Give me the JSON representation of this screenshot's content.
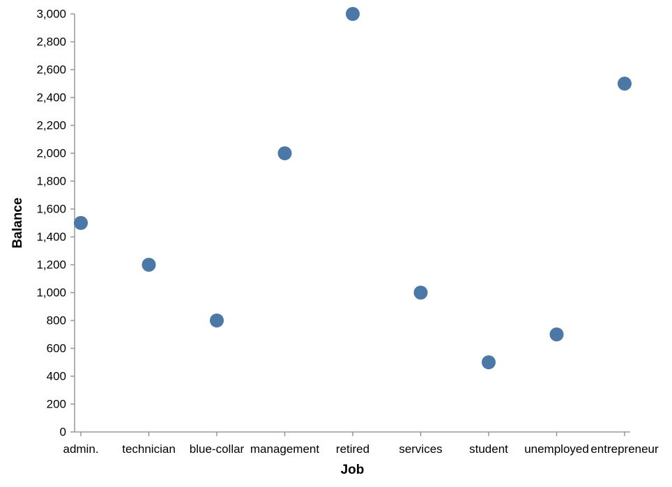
{
  "chart_data": {
    "type": "scatter",
    "title": "",
    "xlabel": "Job",
    "ylabel": "Balance",
    "categories": [
      "admin.",
      "technician",
      "blue-collar",
      "management",
      "retired",
      "services",
      "student",
      "unemployed",
      "entrepreneur"
    ],
    "values": [
      1500,
      1200,
      800,
      2000,
      3000,
      1000,
      500,
      700,
      2500
    ],
    "ylim": [
      0,
      3000
    ],
    "y_ticks": [
      0,
      200,
      400,
      600,
      800,
      1000,
      1200,
      1400,
      1600,
      1800,
      2000,
      2200,
      2400,
      2600,
      2800,
      3000
    ],
    "grid": false,
    "point_color": "#4c78a8"
  }
}
